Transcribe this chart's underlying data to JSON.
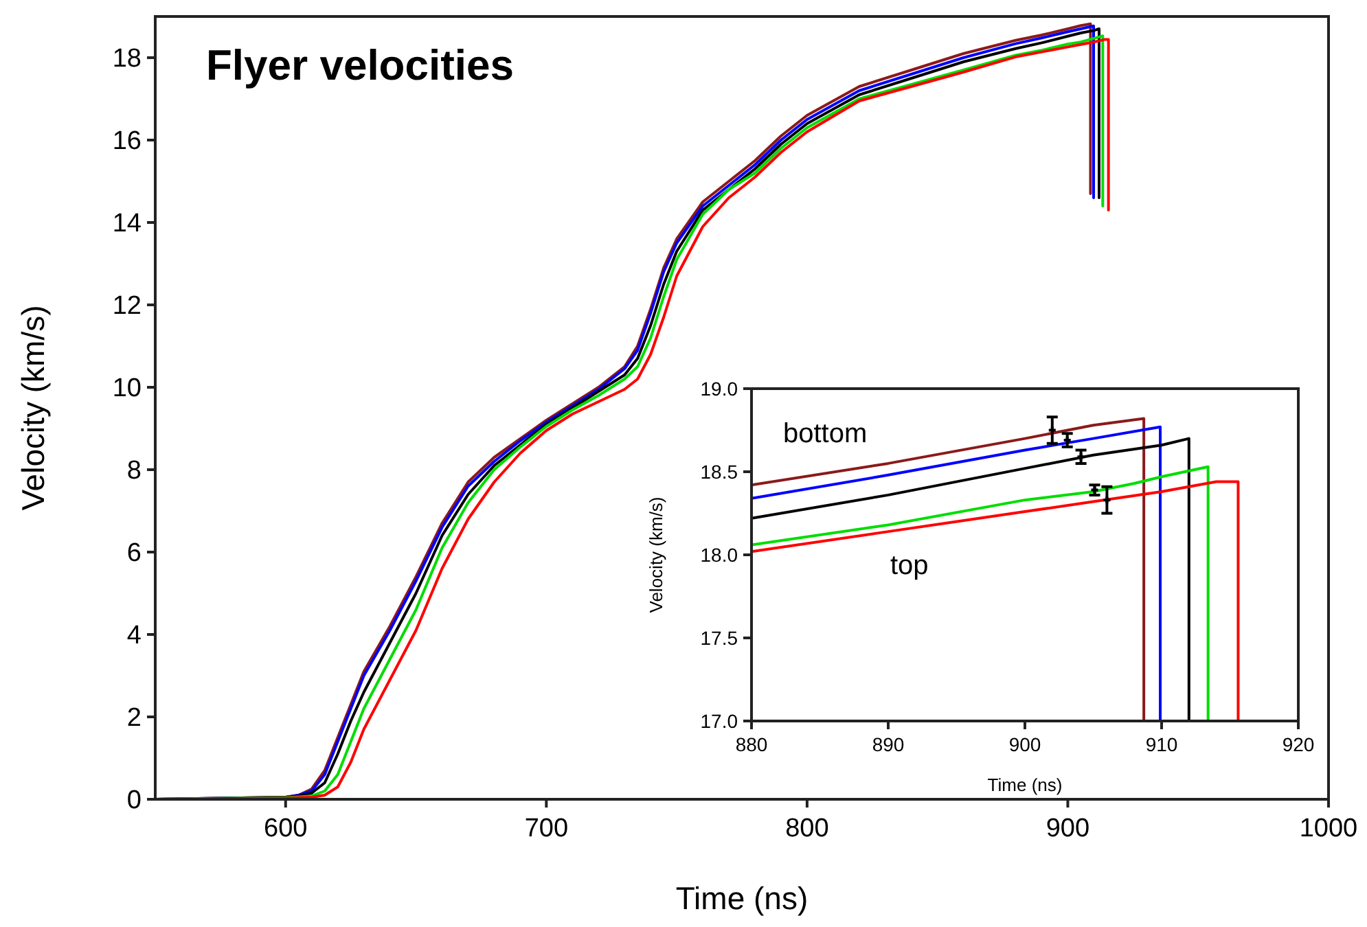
{
  "chart_data": [
    {
      "type": "line",
      "title": "Flyer velocities",
      "xlabel": "Time (ns)",
      "ylabel": "Velocity (km/s)",
      "xlim": [
        550,
        1000
      ],
      "ylim": [
        0,
        19
      ],
      "xticks": [
        600,
        700,
        800,
        900,
        1000
      ],
      "yticks": [
        0,
        2,
        4,
        6,
        8,
        10,
        12,
        14,
        16,
        18
      ],
      "series": [
        {
          "color": "#8b1a1a",
          "x": [
            550,
            600,
            605,
            610,
            615,
            620,
            625,
            630,
            640,
            650,
            660,
            670,
            680,
            690,
            700,
            710,
            720,
            730,
            735,
            740,
            745,
            750,
            760,
            770,
            780,
            790,
            800,
            820,
            840,
            860,
            880,
            890,
            900,
            905,
            908.7,
            908.7
          ],
          "values": [
            0,
            0.05,
            0.1,
            0.25,
            0.7,
            1.5,
            2.3,
            3.1,
            4.2,
            5.4,
            6.7,
            7.7,
            8.3,
            8.75,
            9.2,
            9.6,
            10.0,
            10.5,
            11.0,
            11.9,
            12.9,
            13.6,
            14.5,
            15.0,
            15.5,
            16.1,
            16.6,
            17.3,
            17.7,
            18.1,
            18.42,
            18.55,
            18.7,
            18.78,
            18.82,
            14.7
          ]
        },
        {
          "color": "#0000ff",
          "x": [
            550,
            600,
            605,
            610,
            615,
            620,
            625,
            630,
            640,
            650,
            660,
            670,
            680,
            690,
            700,
            710,
            720,
            730,
            735,
            740,
            745,
            750,
            760,
            770,
            780,
            790,
            800,
            820,
            840,
            860,
            880,
            890,
            900,
            905,
            909.9,
            909.9
          ],
          "values": [
            0,
            0.05,
            0.1,
            0.2,
            0.6,
            1.4,
            2.2,
            3.0,
            4.1,
            5.3,
            6.6,
            7.6,
            8.2,
            8.7,
            9.15,
            9.55,
            9.95,
            10.45,
            10.9,
            11.8,
            12.8,
            13.5,
            14.4,
            14.9,
            15.4,
            16.0,
            16.5,
            17.2,
            17.6,
            18.0,
            18.34,
            18.48,
            18.63,
            18.7,
            18.77,
            14.6
          ]
        },
        {
          "color": "#000000",
          "x": [
            550,
            600,
            605,
            610,
            615,
            620,
            625,
            630,
            640,
            650,
            660,
            670,
            680,
            690,
            700,
            710,
            720,
            730,
            735,
            740,
            745,
            750,
            760,
            770,
            780,
            790,
            800,
            820,
            840,
            860,
            880,
            890,
            900,
            905,
            910,
            912,
            912
          ],
          "values": [
            0,
            0.05,
            0.08,
            0.15,
            0.4,
            1.1,
            1.9,
            2.6,
            3.8,
            5.0,
            6.4,
            7.4,
            8.1,
            8.6,
            9.1,
            9.5,
            9.9,
            10.3,
            10.7,
            11.5,
            12.5,
            13.3,
            14.3,
            14.8,
            15.3,
            15.9,
            16.4,
            17.1,
            17.5,
            17.9,
            18.22,
            18.36,
            18.52,
            18.6,
            18.66,
            18.7,
            14.6
          ]
        },
        {
          "color": "#00dd00",
          "x": [
            550,
            600,
            605,
            610,
            615,
            620,
            625,
            630,
            640,
            650,
            660,
            670,
            680,
            690,
            700,
            710,
            720,
            730,
            735,
            740,
            745,
            750,
            760,
            770,
            780,
            790,
            800,
            820,
            840,
            860,
            880,
            890,
            900,
            905,
            910,
            913.4,
            913.4
          ],
          "values": [
            0,
            0.04,
            0.06,
            0.08,
            0.2,
            0.6,
            1.4,
            2.2,
            3.4,
            4.6,
            6.1,
            7.2,
            8.0,
            8.55,
            9.05,
            9.45,
            9.8,
            10.2,
            10.5,
            11.2,
            12.2,
            13.1,
            14.2,
            14.8,
            15.2,
            15.8,
            16.3,
            17.0,
            17.35,
            17.7,
            18.06,
            18.18,
            18.33,
            18.38,
            18.47,
            18.53,
            14.4
          ]
        },
        {
          "color": "#ff0000",
          "x": [
            550,
            600,
            605,
            610,
            615,
            620,
            625,
            630,
            640,
            650,
            660,
            670,
            680,
            690,
            700,
            710,
            720,
            730,
            735,
            740,
            745,
            750,
            760,
            770,
            780,
            790,
            800,
            820,
            840,
            860,
            880,
            890,
            900,
            905,
            910,
            914,
            915.6,
            915.6
          ],
          "values": [
            0,
            0.03,
            0.04,
            0.05,
            0.1,
            0.3,
            0.9,
            1.7,
            2.9,
            4.1,
            5.6,
            6.8,
            7.7,
            8.4,
            8.95,
            9.35,
            9.65,
            9.95,
            10.2,
            10.8,
            11.7,
            12.7,
            13.9,
            14.6,
            15.1,
            15.7,
            16.2,
            16.95,
            17.3,
            17.65,
            18.02,
            18.14,
            18.26,
            18.32,
            18.38,
            18.44,
            18.44,
            14.3
          ]
        }
      ]
    },
    {
      "type": "line",
      "xlabel": "Time (ns)",
      "ylabel": "Velocity (km/s)",
      "xlim": [
        880,
        920
      ],
      "ylim": [
        17,
        19
      ],
      "xticks": [
        880,
        890,
        900,
        910,
        920
      ],
      "yticks": [
        {
          "value": 17,
          "label": "17.0"
        },
        {
          "value": 17.5,
          "label": "17.5"
        },
        {
          "value": 18,
          "label": "18.0"
        },
        {
          "value": 18.5,
          "label": "18.5"
        },
        {
          "value": 19,
          "label": "19.0"
        }
      ],
      "annotations": [
        "bottom",
        "top"
      ],
      "series": [
        {
          "color": "#8b1a1a",
          "x": [
            880,
            890,
            900,
            905,
            908.7,
            908.7
          ],
          "values": [
            18.42,
            18.55,
            18.7,
            18.78,
            18.82,
            17.0
          ]
        },
        {
          "color": "#0000ff",
          "x": [
            880,
            890,
            900,
            905,
            909.9,
            909.9
          ],
          "values": [
            18.34,
            18.48,
            18.63,
            18.7,
            18.77,
            17.0
          ]
        },
        {
          "color": "#000000",
          "x": [
            880,
            890,
            900,
            905,
            910,
            912,
            912
          ],
          "values": [
            18.22,
            18.36,
            18.52,
            18.6,
            18.66,
            18.7,
            17.0
          ]
        },
        {
          "color": "#00dd00",
          "x": [
            880,
            890,
            900,
            905,
            908,
            910,
            913.4,
            913.4
          ],
          "values": [
            18.06,
            18.18,
            18.33,
            18.38,
            18.43,
            18.47,
            18.53,
            17.0
          ]
        },
        {
          "color": "#ff0000",
          "x": [
            880,
            890,
            900,
            905,
            910,
            914,
            915.6,
            915.6
          ],
          "values": [
            18.02,
            18.14,
            18.26,
            18.32,
            18.38,
            18.44,
            18.44,
            17.0
          ]
        },
        {
          "type": "scatter",
          "marker": "cross",
          "color": "#000000",
          "x": [
            902,
            903.1,
            904.1,
            905.1,
            906
          ],
          "values": [
            18.75,
            18.69,
            18.59,
            18.39,
            18.33
          ],
          "errors": [
            0.08,
            0.04,
            0.04,
            0.03,
            0.08
          ]
        }
      ]
    }
  ]
}
